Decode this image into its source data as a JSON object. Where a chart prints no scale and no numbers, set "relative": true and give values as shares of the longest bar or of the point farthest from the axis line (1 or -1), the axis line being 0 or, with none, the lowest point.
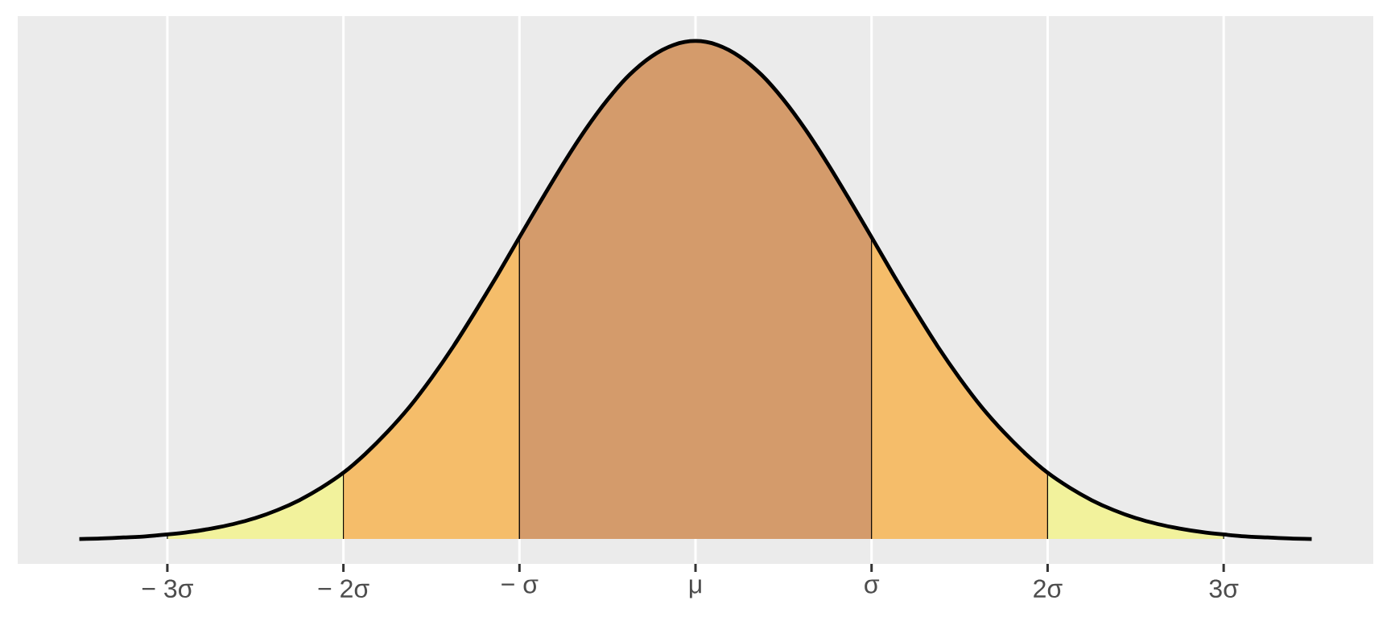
{
  "chart_data": {
    "type": "area",
    "relative": true,
    "grid": "x",
    "xlim": [
      -3.85,
      3.85
    ],
    "xticks": [
      {
        "value": -3,
        "label": "− 3σ"
      },
      {
        "value": -2,
        "label": "− 2σ"
      },
      {
        "value": -1,
        "label": "− σ"
      },
      {
        "value": 0,
        "label": "μ"
      },
      {
        "value": 1,
        "label": "σ"
      },
      {
        "value": 2,
        "label": "2σ"
      },
      {
        "value": 3,
        "label": "3σ"
      }
    ],
    "series": [
      {
        "color": "#f2f29c",
        "x": [
          -3,
          -2.875,
          -2.75,
          -2.625,
          -2.5,
          -2.375,
          -2.25,
          -2.125,
          -2
        ],
        "values": [
          0.009,
          0.014,
          0.021,
          0.03,
          0.042,
          0.058,
          0.078,
          0.103,
          0.133
        ]
      },
      {
        "color": "#f5bd6a",
        "x": [
          -2,
          -1.875,
          -1.75,
          -1.625,
          -1.5,
          -1.375,
          -1.25,
          -1.125,
          -1
        ],
        "values": [
          0.133,
          0.171,
          0.215,
          0.265,
          0.323,
          0.387,
          0.457,
          0.53,
          0.606
        ]
      },
      {
        "color": "#d49b6b",
        "x": [
          -1,
          -0.875,
          -0.75,
          -0.625,
          -0.5,
          -0.375,
          -0.25,
          -0.125,
          0,
          0.125,
          0.25,
          0.375,
          0.5,
          0.625,
          0.75,
          0.875,
          1
        ],
        "values": [
          0.606,
          0.681,
          0.754,
          0.822,
          0.882,
          0.932,
          0.969,
          0.992,
          1,
          0.992,
          0.969,
          0.932,
          0.882,
          0.822,
          0.754,
          0.681,
          0.606
        ]
      },
      {
        "color": "#f5bd6a",
        "x": [
          1,
          1.125,
          1.25,
          1.375,
          1.5,
          1.625,
          1.75,
          1.875,
          2
        ],
        "values": [
          0.606,
          0.53,
          0.457,
          0.387,
          0.323,
          0.265,
          0.215,
          0.171,
          0.133
        ]
      },
      {
        "color": "#f2f29c",
        "x": [
          2,
          2.125,
          2.25,
          2.375,
          2.5,
          2.625,
          2.75,
          2.875,
          3
        ],
        "values": [
          0.133,
          0.103,
          0.078,
          0.058,
          0.042,
          0.03,
          0.021,
          0.014,
          0.009
        ]
      },
      {
        "type": "line",
        "color": "#000000",
        "x": [
          -3.5,
          -3.375,
          -3.25,
          -3.125,
          -3,
          -2.875,
          -2.75,
          -2.625,
          -2.5,
          -2.375,
          -2.25,
          -2.125,
          -2,
          -1.875,
          -1.75,
          -1.625,
          -1.5,
          -1.375,
          -1.25,
          -1.125,
          -1,
          -0.875,
          -0.75,
          -0.625,
          -0.5,
          -0.375,
          -0.25,
          -0.125,
          0,
          0.125,
          0.25,
          0.375,
          0.5,
          0.625,
          0.75,
          0.875,
          1,
          1.125,
          1.25,
          1.375,
          1.5,
          1.625,
          1.75,
          1.875,
          2,
          2.125,
          2.25,
          2.375,
          2.5,
          2.625,
          2.75,
          2.875,
          3,
          3.125,
          3.25,
          3.375,
          3.5
        ],
        "values": [
          0,
          0.001,
          0.003,
          0.005,
          0.009,
          0.014,
          0.021,
          0.03,
          0.042,
          0.058,
          0.078,
          0.103,
          0.133,
          0.171,
          0.215,
          0.265,
          0.323,
          0.387,
          0.457,
          0.53,
          0.606,
          0.681,
          0.754,
          0.822,
          0.882,
          0.932,
          0.969,
          0.992,
          1,
          0.992,
          0.969,
          0.932,
          0.882,
          0.822,
          0.754,
          0.681,
          0.606,
          0.53,
          0.457,
          0.387,
          0.323,
          0.265,
          0.215,
          0.171,
          0.133,
          0.103,
          0.078,
          0.058,
          0.042,
          0.03,
          0.021,
          0.014,
          0.009,
          0.005,
          0.003,
          0.001,
          0
        ]
      }
    ]
  }
}
